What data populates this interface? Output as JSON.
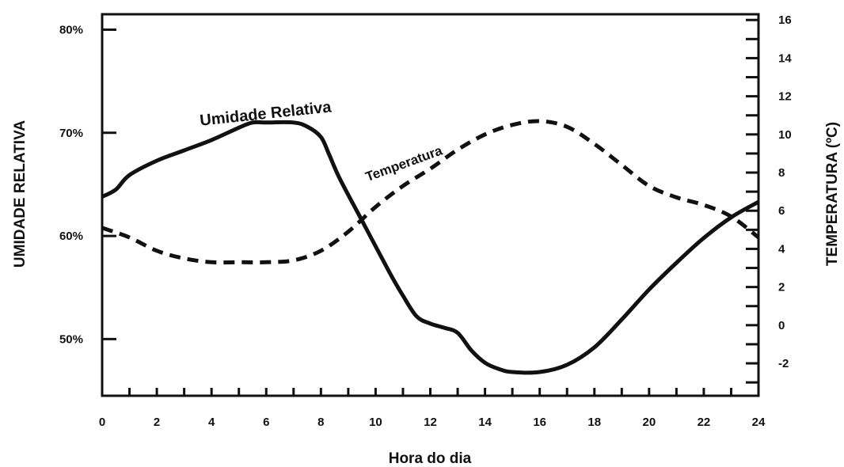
{
  "chart_data": {
    "type": "line",
    "xlabel": "Hora do dia",
    "ylabel_left": "UMIDADE RELATIVA",
    "ylabel_right": "TEMPERATURA (ºC)",
    "x_ticks": [
      "0",
      "2",
      "4",
      "6",
      "8",
      "10",
      "12",
      "14",
      "16",
      "18",
      "20",
      "22",
      "24"
    ],
    "y_left_ticks": [
      "80%",
      "70%",
      "60%",
      "50%"
    ],
    "y_right_ticks": [
      "16",
      "14",
      "12",
      "10",
      "8",
      "6",
      "4",
      "2",
      "0",
      "-2"
    ],
    "xlim": [
      0,
      24
    ],
    "ylim_left": [
      44.5,
      81.5
    ],
    "ylim_right": [
      -3.7,
      16.3
    ],
    "annotations": [
      "Umidade Relativa",
      "Temperatura"
    ],
    "series": [
      {
        "name": "Umidade Relativa",
        "axis": "left",
        "style": "solid",
        "x": [
          0,
          0.5,
          1,
          2,
          3,
          4,
          5,
          5.5,
          6,
          7,
          7.5,
          8,
          8.3,
          8.7,
          9.5,
          10.5,
          11,
          11.5,
          12,
          12.5,
          13,
          13.5,
          14,
          14.5,
          15,
          16,
          17,
          18,
          19,
          20,
          21,
          22,
          23,
          24
        ],
        "y": [
          63.8,
          64.5,
          65.9,
          67.3,
          68.3,
          69.3,
          70.5,
          71,
          71,
          71,
          70.6,
          69.6,
          67.9,
          65.5,
          61.5,
          56.5,
          54.2,
          52.2,
          51.5,
          51.1,
          50.6,
          48.9,
          47.7,
          47.1,
          46.8,
          46.8,
          47.5,
          49.2,
          51.9,
          54.8,
          57.4,
          59.8,
          61.8,
          63.3
        ]
      },
      {
        "name": "Temperatura",
        "axis": "right",
        "style": "dashed",
        "x": [
          0,
          1,
          2,
          3,
          4,
          5,
          6,
          7,
          8,
          9,
          10,
          11,
          12,
          13,
          14,
          15,
          16,
          17,
          18,
          19,
          20,
          21,
          22,
          23,
          24
        ],
        "y": [
          5.1,
          4.6,
          3.9,
          3.5,
          3.3,
          3.3,
          3.3,
          3.4,
          3.9,
          4.9,
          6.2,
          7.3,
          8.2,
          9.2,
          10.0,
          10.5,
          10.7,
          10.4,
          9.5,
          8.4,
          7.3,
          6.7,
          6.3,
          5.7,
          4.6
        ]
      }
    ]
  }
}
